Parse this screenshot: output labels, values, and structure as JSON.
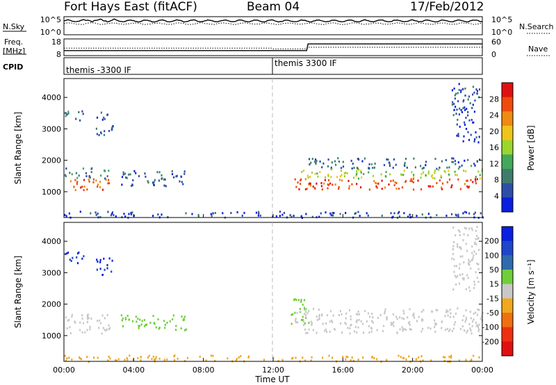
{
  "header": {
    "radar": "Fort Hays East (fitACF)",
    "beam": "Beam 04",
    "date": "17/Feb/2012"
  },
  "top_panels": {
    "nsky_label": "N.Sky",
    "nsky_ticks": [
      "10^5",
      "10^0"
    ],
    "nsearch_label": "N.Search",
    "nsearch_ticks": [
      "10^5",
      "10^0"
    ],
    "freq_label_1": "Freq.",
    "freq_label_2": "[MHz]",
    "freq_ticks": [
      "18",
      "8"
    ],
    "nave_label": "Nave",
    "nave_ticks": [
      "60",
      "0"
    ],
    "cpid_label": "CPID",
    "cpid_segments": [
      {
        "label": "themis -3300 IF",
        "start_h": 0,
        "end_h": 12
      },
      {
        "label": "themis 3300 IF",
        "start_h": 12,
        "end_h": 24
      }
    ]
  },
  "chart_data": [
    {
      "type": "heatmap",
      "title": "Power",
      "xlabel": "Time UT",
      "ylabel": "Slant Range [km]",
      "x_ticks": [
        "00:00",
        "04:00",
        "08:00",
        "12:00",
        "16:00",
        "20:00",
        "00:00"
      ],
      "x_range_hours": [
        0,
        24
      ],
      "y_ticks": [
        1000,
        2000,
        3000,
        4000
      ],
      "ylim": [
        180,
        4600
      ],
      "colorbar_label": "Power [dB]",
      "colorbar_ticks": [
        "28",
        "24",
        "20",
        "16",
        "12",
        "8",
        "4"
      ],
      "colorbar_range": [
        0,
        32
      ],
      "colors": [
        "#0a1fe0",
        "#2d4ea8",
        "#3e7d6c",
        "#43a95a",
        "#9ad62c",
        "#f0c419",
        "#f08a12",
        "#ef4b0c",
        "#e01010"
      ],
      "scatter_regions": [
        {
          "t": [
            0.0,
            2.6
          ],
          "r": [
            1050,
            1450
          ],
          "value": 26
        },
        {
          "t": [
            0.0,
            2.6
          ],
          "r": [
            1450,
            1800
          ],
          "value": 9
        },
        {
          "t": [
            0.0,
            1.2
          ],
          "r": [
            3300,
            3700
          ],
          "value": 8
        },
        {
          "t": [
            1.8,
            2.8
          ],
          "r": [
            2800,
            3600
          ],
          "value": 6
        },
        {
          "t": [
            3.2,
            7.0
          ],
          "r": [
            1200,
            1700
          ],
          "value": 6
        },
        {
          "t": [
            13.2,
            24.0
          ],
          "r": [
            1100,
            1450
          ],
          "value": 27
        },
        {
          "t": [
            13.2,
            24.0
          ],
          "r": [
            1450,
            1750
          ],
          "value": 16
        },
        {
          "t": [
            14.0,
            24.0
          ],
          "r": [
            1750,
            2100
          ],
          "value": 7
        },
        {
          "t": [
            22.2,
            23.8
          ],
          "r": [
            2600,
            4500
          ],
          "value": 5
        },
        {
          "t": [
            0.0,
            24.0
          ],
          "r": [
            200,
            400
          ],
          "value": 4
        }
      ]
    },
    {
      "type": "heatmap",
      "title": "Velocity",
      "xlabel": "Time UT",
      "ylabel": "Slant Range [km]",
      "x_ticks": [
        "00:00",
        "04:00",
        "08:00",
        "12:00",
        "16:00",
        "20:00",
        "00:00"
      ],
      "x_range_hours": [
        0,
        24
      ],
      "y_ticks": [
        1000,
        2000,
        3000,
        4000
      ],
      "ylim": [
        180,
        4600
      ],
      "colorbar_label": "Velocity [m s⁻¹]",
      "colorbar_ticks": [
        "200",
        "100",
        "50",
        "15",
        "-15",
        "-50",
        "-100",
        "-200"
      ],
      "colors": [
        "#0a1fe0",
        "#1e46c8",
        "#2f6ab0",
        "#6fcf3a",
        "#c8c8c8",
        "#f0a81e",
        "#f07010",
        "#ef3010",
        "#e01010"
      ],
      "scatter_regions": [
        {
          "t": [
            0.0,
            2.6
          ],
          "r": [
            1050,
            1700
          ],
          "value": 0
        },
        {
          "t": [
            0.0,
            1.2
          ],
          "r": [
            3300,
            3700
          ],
          "value": 150
        },
        {
          "t": [
            1.8,
            2.8
          ],
          "r": [
            2900,
            3500
          ],
          "value": 150
        },
        {
          "t": [
            3.2,
            7.0
          ],
          "r": [
            1200,
            1700
          ],
          "value": 35
        },
        {
          "t": [
            13.0,
            14.0
          ],
          "r": [
            1300,
            2200
          ],
          "value": 35
        },
        {
          "t": [
            13.2,
            24.0
          ],
          "r": [
            1100,
            1900
          ],
          "value": 0
        },
        {
          "t": [
            22.2,
            23.8
          ],
          "r": [
            2400,
            4500
          ],
          "value": 0
        },
        {
          "t": [
            0.0,
            24.0
          ],
          "r": [
            200,
            400
          ],
          "value": -35
        }
      ]
    }
  ]
}
